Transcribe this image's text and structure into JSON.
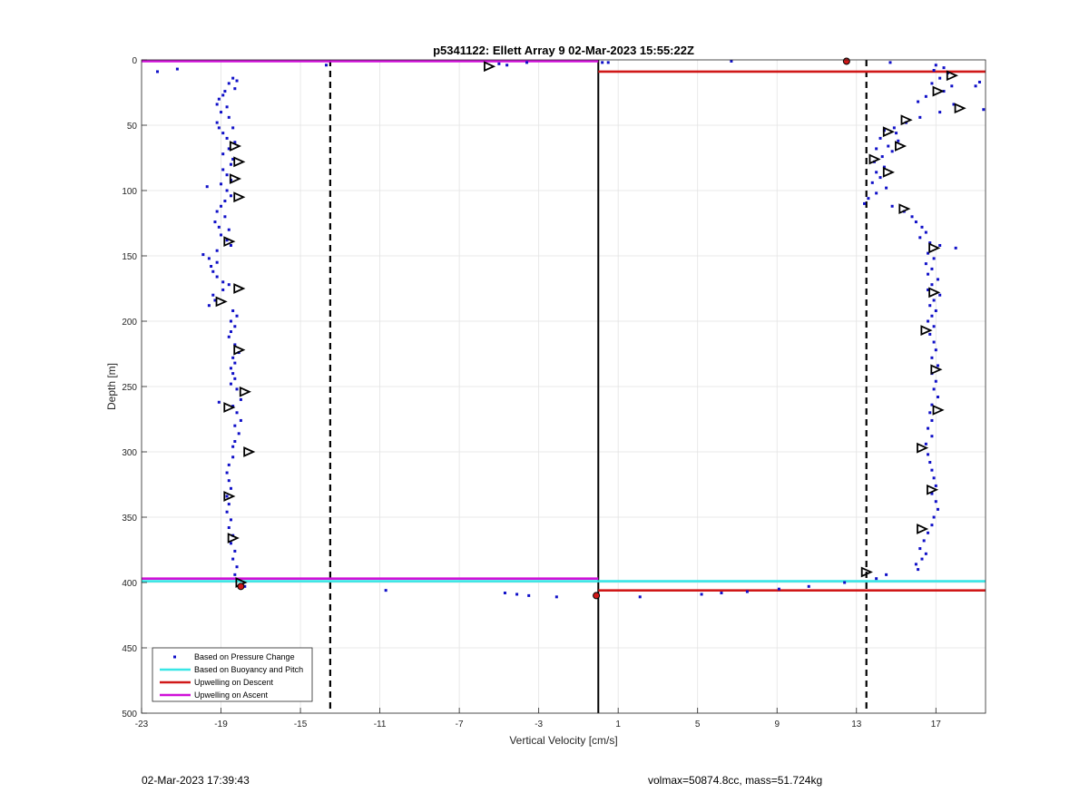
{
  "chart_data": {
    "type": "scatter",
    "title": "p5341122: Ellett Array 9 02-Mar-2023 15:55:22Z",
    "xlabel": "Vertical Velocity [cm/s]",
    "ylabel": "Depth [m]",
    "xlim": [
      -23,
      19.5
    ],
    "ylim": [
      0,
      500
    ],
    "y_reversed": true,
    "grid": true,
    "xticks": [
      -23,
      -19,
      -15,
      -11,
      -7,
      -3,
      1,
      5,
      9,
      13,
      17
    ],
    "yticks": [
      0,
      50,
      100,
      150,
      200,
      250,
      300,
      350,
      400,
      450,
      500
    ],
    "legend_position": "bottom-left",
    "legend": [
      {
        "label": "Based on Pressure Change",
        "color": "#1010c8",
        "style": "dot"
      },
      {
        "label": "Based on Buoyancy and Pitch",
        "color": "#38e6e6",
        "style": "line"
      },
      {
        "label": "Upwelling on Descent",
        "color": "#d01818",
        "style": "line"
      },
      {
        "label": "Upwelling on Ascent",
        "color": "#d010d8",
        "style": "line"
      }
    ],
    "reference_lines": {
      "zero_solid_x": 0,
      "dashed_x": [
        -13.5,
        13.5
      ]
    },
    "pressure_change_points": [
      [
        -22.2,
        9
      ],
      [
        -21.2,
        7
      ],
      [
        -18.4,
        14
      ],
      [
        -18.2,
        16
      ],
      [
        -18.6,
        18
      ],
      [
        -18.3,
        22
      ],
      [
        -18.8,
        24
      ],
      [
        -18.9,
        27
      ],
      [
        -19.1,
        30
      ],
      [
        -19.2,
        34
      ],
      [
        -18.7,
        36
      ],
      [
        -19.0,
        40
      ],
      [
        -18.6,
        44
      ],
      [
        -19.2,
        48
      ],
      [
        -19.1,
        52
      ],
      [
        -18.4,
        52
      ],
      [
        -18.9,
        56
      ],
      [
        -18.7,
        60
      ],
      [
        -18.3,
        63
      ],
      [
        -18.6,
        68
      ],
      [
        -18.9,
        72
      ],
      [
        -18.4,
        76
      ],
      [
        -18.5,
        80
      ],
      [
        -18.9,
        84
      ],
      [
        -18.7,
        88
      ],
      [
        -18.5,
        92
      ],
      [
        -19.0,
        95
      ],
      [
        -19.7,
        97
      ],
      [
        -18.7,
        100
      ],
      [
        -18.5,
        104
      ],
      [
        -18.8,
        108
      ],
      [
        -19.0,
        112
      ],
      [
        -19.2,
        116
      ],
      [
        -18.8,
        120
      ],
      [
        -19.3,
        124
      ],
      [
        -19.1,
        128
      ],
      [
        -18.6,
        130
      ],
      [
        -19.0,
        134
      ],
      [
        -18.7,
        138
      ],
      [
        -18.5,
        142
      ],
      [
        -19.2,
        146
      ],
      [
        -19.9,
        149
      ],
      [
        -19.6,
        152
      ],
      [
        -19.2,
        155
      ],
      [
        -19.5,
        158
      ],
      [
        -19.4,
        162
      ],
      [
        -19.2,
        166
      ],
      [
        -18.9,
        170
      ],
      [
        -18.6,
        172
      ],
      [
        -18.9,
        176
      ],
      [
        -19.4,
        180
      ],
      [
        -19.3,
        184
      ],
      [
        -19.6,
        188
      ],
      [
        -18.4,
        192
      ],
      [
        -18.2,
        196
      ],
      [
        -18.5,
        200
      ],
      [
        -18.3,
        204
      ],
      [
        -18.5,
        208
      ],
      [
        -18.6,
        212
      ],
      [
        -18.3,
        218
      ],
      [
        -18.1,
        224
      ],
      [
        -18.4,
        228
      ],
      [
        -18.3,
        232
      ],
      [
        -18.5,
        236
      ],
      [
        -18.4,
        240
      ],
      [
        -18.3,
        244
      ],
      [
        -18.5,
        248
      ],
      [
        -18.2,
        252
      ],
      [
        -19.1,
        262
      ],
      [
        -18.0,
        260
      ],
      [
        -18.4,
        265
      ],
      [
        -18.2,
        270
      ],
      [
        -18.0,
        276
      ],
      [
        -18.3,
        280
      ],
      [
        -18.1,
        286
      ],
      [
        -18.3,
        292
      ],
      [
        -18.4,
        296
      ],
      [
        -18.4,
        304
      ],
      [
        -18.6,
        310
      ],
      [
        -18.7,
        316
      ],
      [
        -18.6,
        322
      ],
      [
        -18.5,
        328
      ],
      [
        -18.7,
        334
      ],
      [
        -18.6,
        340
      ],
      [
        -18.7,
        346
      ],
      [
        -18.5,
        352
      ],
      [
        -18.6,
        358
      ],
      [
        -18.4,
        364
      ],
      [
        -18.5,
        370
      ],
      [
        -18.3,
        376
      ],
      [
        -18.4,
        382
      ],
      [
        -18.2,
        388
      ],
      [
        -18.3,
        394
      ],
      [
        -17.8,
        403
      ],
      [
        -5.0,
        3
      ],
      [
        -3.6,
        2
      ],
      [
        -4.6,
        4
      ],
      [
        -13.7,
        4
      ],
      [
        0.2,
        2
      ],
      [
        0.5,
        2
      ],
      [
        6.7,
        1
      ],
      [
        14.7,
        2
      ],
      [
        17.0,
        4
      ],
      [
        17.4,
        6
      ],
      [
        16.9,
        8
      ],
      [
        17.6,
        10
      ],
      [
        17.2,
        14
      ],
      [
        16.8,
        18
      ],
      [
        17.8,
        20
      ],
      [
        19.2,
        17
      ],
      [
        19.0,
        20
      ],
      [
        17.4,
        24
      ],
      [
        16.5,
        28
      ],
      [
        16.1,
        32
      ],
      [
        17.9,
        34
      ],
      [
        19.4,
        38
      ],
      [
        17.2,
        40
      ],
      [
        16.2,
        44
      ],
      [
        15.5,
        48
      ],
      [
        14.9,
        52
      ],
      [
        14.4,
        54
      ],
      [
        15.0,
        56
      ],
      [
        14.2,
        60
      ],
      [
        15.1,
        62
      ],
      [
        14.6,
        66
      ],
      [
        14.0,
        68
      ],
      [
        14.8,
        70
      ],
      [
        14.3,
        74
      ],
      [
        13.9,
        78
      ],
      [
        14.4,
        82
      ],
      [
        14.0,
        86
      ],
      [
        14.2,
        90
      ],
      [
        13.8,
        94
      ],
      [
        14.5,
        98
      ],
      [
        14.0,
        102
      ],
      [
        13.6,
        106
      ],
      [
        13.4,
        110
      ],
      [
        14.8,
        112
      ],
      [
        15.4,
        116
      ],
      [
        15.8,
        120
      ],
      [
        16.0,
        124
      ],
      [
        16.3,
        128
      ],
      [
        16.5,
        132
      ],
      [
        16.2,
        136
      ],
      [
        16.7,
        140
      ],
      [
        17.2,
        142
      ],
      [
        18.0,
        144
      ],
      [
        16.6,
        148
      ],
      [
        16.9,
        152
      ],
      [
        16.5,
        156
      ],
      [
        16.8,
        160
      ],
      [
        16.6,
        164
      ],
      [
        17.1,
        168
      ],
      [
        16.8,
        172
      ],
      [
        16.6,
        176
      ],
      [
        17.2,
        180
      ],
      [
        16.9,
        184
      ],
      [
        16.7,
        188
      ],
      [
        17.0,
        192
      ],
      [
        16.8,
        196
      ],
      [
        16.6,
        200
      ],
      [
        16.9,
        204
      ],
      [
        16.7,
        210
      ],
      [
        16.9,
        216
      ],
      [
        17.0,
        222
      ],
      [
        16.8,
        228
      ],
      [
        17.1,
        234
      ],
      [
        16.8,
        240
      ],
      [
        17.0,
        246
      ],
      [
        16.9,
        252
      ],
      [
        17.1,
        258
      ],
      [
        16.8,
        264
      ],
      [
        16.7,
        270
      ],
      [
        16.8,
        276
      ],
      [
        16.6,
        282
      ],
      [
        16.8,
        288
      ],
      [
        16.5,
        294
      ],
      [
        16.6,
        302
      ],
      [
        16.7,
        308
      ],
      [
        16.8,
        314
      ],
      [
        16.9,
        320
      ],
      [
        17.0,
        326
      ],
      [
        16.8,
        332
      ],
      [
        17.0,
        338
      ],
      [
        17.1,
        344
      ],
      [
        16.9,
        350
      ],
      [
        16.8,
        356
      ],
      [
        16.6,
        362
      ],
      [
        16.4,
        368
      ],
      [
        16.2,
        374
      ],
      [
        16.5,
        378
      ],
      [
        16.3,
        382
      ],
      [
        16.0,
        386
      ],
      [
        16.1,
        390
      ],
      [
        14.5,
        394
      ],
      [
        14.0,
        397
      ],
      [
        12.4,
        400
      ],
      [
        -10.7,
        406
      ],
      [
        -4.7,
        408
      ],
      [
        -4.1,
        409
      ],
      [
        -3.5,
        410
      ],
      [
        -2.1,
        411
      ],
      [
        2.1,
        411
      ],
      [
        5.2,
        409
      ],
      [
        6.2,
        408
      ],
      [
        7.5,
        407
      ],
      [
        9.1,
        405
      ],
      [
        10.6,
        403
      ]
    ],
    "triangle_points": [
      [
        -5.5,
        5
      ],
      [
        -18.3,
        66
      ],
      [
        -18.1,
        78
      ],
      [
        -18.3,
        91
      ],
      [
        -18.1,
        105
      ],
      [
        -18.6,
        139
      ],
      [
        -18.1,
        175
      ],
      [
        -19.0,
        185
      ],
      [
        -18.1,
        222
      ],
      [
        -17.8,
        254
      ],
      [
        -18.6,
        266
      ],
      [
        -17.6,
        300
      ],
      [
        -18.6,
        334
      ],
      [
        -18.4,
        366
      ],
      [
        -18.0,
        400
      ],
      [
        17.1,
        24
      ],
      [
        17.8,
        12
      ],
      [
        18.2,
        37
      ],
      [
        15.5,
        46
      ],
      [
        14.6,
        55
      ],
      [
        15.2,
        66
      ],
      [
        13.9,
        76
      ],
      [
        14.6,
        86
      ],
      [
        15.4,
        114
      ],
      [
        16.9,
        144
      ],
      [
        16.9,
        178
      ],
      [
        16.5,
        207
      ],
      [
        17.0,
        237
      ],
      [
        17.1,
        268
      ],
      [
        16.3,
        297
      ],
      [
        16.8,
        329
      ],
      [
        16.3,
        359
      ],
      [
        13.5,
        392
      ]
    ],
    "red_markers": [
      [
        12.5,
        1
      ],
      [
        -18.0,
        403
      ],
      [
        -0.1,
        410
      ]
    ],
    "series": [
      {
        "name": "Based on Buoyancy and Pitch",
        "segments": [
          [
            [
              -23,
              399
            ],
            [
              0,
              399
            ]
          ],
          [
            [
              0,
              399
            ],
            [
              19.5,
              399
            ]
          ]
        ]
      },
      {
        "name": "Upwelling on Descent",
        "segments": [
          [
            [
              0,
              9
            ],
            [
              19.5,
              9
            ]
          ],
          [
            [
              0,
              406
            ],
            [
              19.5,
              406
            ]
          ]
        ]
      },
      {
        "name": "Upwelling on Ascent",
        "segments": [
          [
            [
              -23,
              1
            ],
            [
              0,
              1
            ]
          ],
          [
            [
              -23,
              397
            ],
            [
              0,
              397
            ]
          ]
        ]
      }
    ]
  },
  "footer": {
    "left": "02-Mar-2023 17:39:43",
    "right": "volmax=50874.8cc, mass=51.724kg"
  }
}
